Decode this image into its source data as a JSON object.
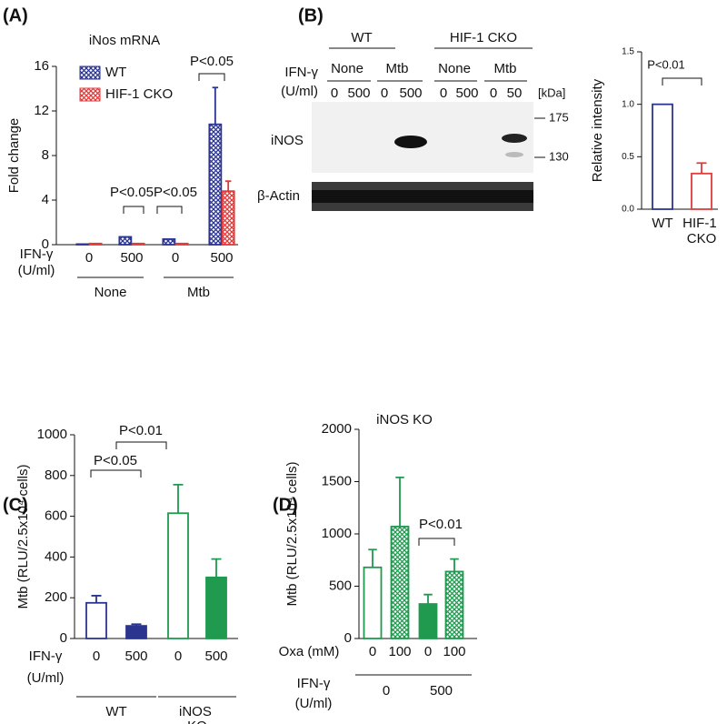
{
  "chart_data": [
    {
      "type": "bar",
      "panel": "(A)",
      "title": "iNos mRNA",
      "ylabel": "Fold change",
      "ylim": [
        0,
        16
      ],
      "yticks": [
        0,
        4,
        8,
        12,
        16
      ],
      "categories": [
        "0",
        "500",
        "0",
        "500"
      ],
      "groups": [
        "None",
        "Mtb"
      ],
      "xlabel_lines": [
        "IFN-γ",
        "(U/ml)"
      ],
      "series": [
        {
          "name": "WT",
          "color": "#2b3590",
          "style": "hatch",
          "values": [
            0.05,
            0.7,
            0.5,
            10.8
          ],
          "errors": [
            null,
            null,
            null,
            3.3
          ]
        },
        {
          "name": "HIF-1 CKO",
          "color": "#e03a3a",
          "style": "hatch",
          "values": [
            0.1,
            0.1,
            0.1,
            4.8
          ],
          "errors": [
            null,
            null,
            null,
            0.9
          ]
        }
      ],
      "annotations": [
        "P<0.05",
        "P<0.05",
        "P<0.05"
      ],
      "legend": "upper left"
    },
    {
      "type": "bar",
      "panel": "(B)",
      "ylabel": "Relative intensity",
      "ylim": [
        0,
        1.5
      ],
      "yticks": [
        {
          "value": 0,
          "label": "0.0"
        },
        {
          "value": 0.5,
          "label": "0.5"
        },
        {
          "value": 1,
          "label": "1.0"
        },
        {
          "value": 1.5,
          "label": "1.5"
        }
      ],
      "categories": [
        "WT",
        "HIF-1 CKO"
      ],
      "values": [
        1,
        0.34
      ],
      "errors": [
        null,
        0.1
      ],
      "colors": [
        "#2b3590",
        "#e03a3a"
      ],
      "styles": [
        "outline",
        "outline"
      ],
      "annotations": [
        "P<0.01"
      ]
    },
    {
      "type": "bar",
      "panel": "(C)",
      "ylabel": "Mtb (RLU/2.5x10⁴ cells)",
      "ylim": [
        0,
        1000
      ],
      "yticks": [
        0,
        200,
        400,
        600,
        800,
        1000
      ],
      "categories": [
        "0",
        "500",
        "0",
        "500"
      ],
      "groups": [
        "WT",
        "iNOS KO"
      ],
      "xlabel_lines": [
        "IFN-γ",
        "(U/ml)"
      ],
      "values": [
        175,
        62,
        615,
        300
      ],
      "errors": [
        35,
        8,
        140,
        90
      ],
      "colors": [
        "#2b3590",
        "#2b3590",
        "#1f9a4f",
        "#1f9a4f"
      ],
      "styles": [
        "outline",
        "solid",
        "outline",
        "solid"
      ],
      "annotations": [
        "P<0.05",
        "P<0.01"
      ]
    },
    {
      "type": "bar",
      "panel": "(D)",
      "title": "iNOS KO",
      "ylabel": "Mtb (RLU/2.5x10⁴ cells)",
      "ylim": [
        0,
        2000
      ],
      "yticks": [
        0,
        500,
        1000,
        1500,
        2000
      ],
      "categories": [
        "0",
        "100",
        "0",
        "100"
      ],
      "xlabel_lines": [
        "Oxa (mM)"
      ],
      "groups": [
        "0",
        "500"
      ],
      "group_label_lines": [
        "IFN-γ",
        "(U/ml)"
      ],
      "values": [
        680,
        1070,
        330,
        640
      ],
      "errors": [
        170,
        470,
        90,
        120
      ],
      "colors": [
        "#1f9a4f",
        "#1f9a4f",
        "#1f9a4f",
        "#1f9a4f"
      ],
      "styles": [
        "outline",
        "hatch",
        "solid",
        "hatch"
      ],
      "annotations": [
        "P<0.01"
      ]
    }
  ],
  "blot": {
    "groups": [
      "WT",
      "HIF-1 CKO"
    ],
    "treatments": [
      "None",
      "Mtb",
      "None",
      "Mtb"
    ],
    "ifn_label": [
      "IFN-γ",
      "(U/ml)"
    ],
    "doses": [
      "0",
      "500",
      "0",
      "500",
      "0",
      "500",
      "0",
      "50"
    ],
    "kda_label": "[kDa]",
    "markers": [
      "175",
      "130"
    ],
    "rows": [
      "iNOS",
      "β-Actin"
    ]
  }
}
